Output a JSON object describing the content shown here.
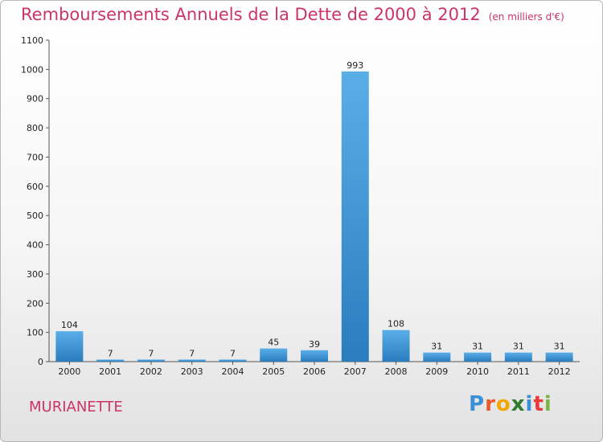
{
  "header": {
    "title": "Remboursements Annuels de la Dette de 2000 à 2012",
    "unit": "(en milliers d'€)"
  },
  "footer": {
    "commune": "MURIANETTE",
    "logo": "Proxiti"
  },
  "colors": {
    "title": "#cc3366",
    "bar_light": "#5aaee8",
    "bar_dark": "#2a7dbd"
  },
  "chart_data": {
    "type": "bar",
    "title": "Remboursements Annuels de la Dette de 2000 à 2012",
    "subtitle": "(en milliers d'€)",
    "xlabel": "",
    "ylabel": "",
    "categories": [
      "2000",
      "2001",
      "2002",
      "2003",
      "2004",
      "2005",
      "2006",
      "2007",
      "2008",
      "2009",
      "2010",
      "2011",
      "2012"
    ],
    "values": [
      104,
      7,
      7,
      7,
      7,
      45,
      39,
      993,
      108,
      31,
      31,
      31,
      31
    ],
    "ylim": [
      0,
      1100
    ],
    "yticks": [
      0,
      100,
      200,
      300,
      400,
      500,
      600,
      700,
      800,
      900,
      1000,
      1100
    ],
    "grid": false,
    "legend": "none"
  }
}
